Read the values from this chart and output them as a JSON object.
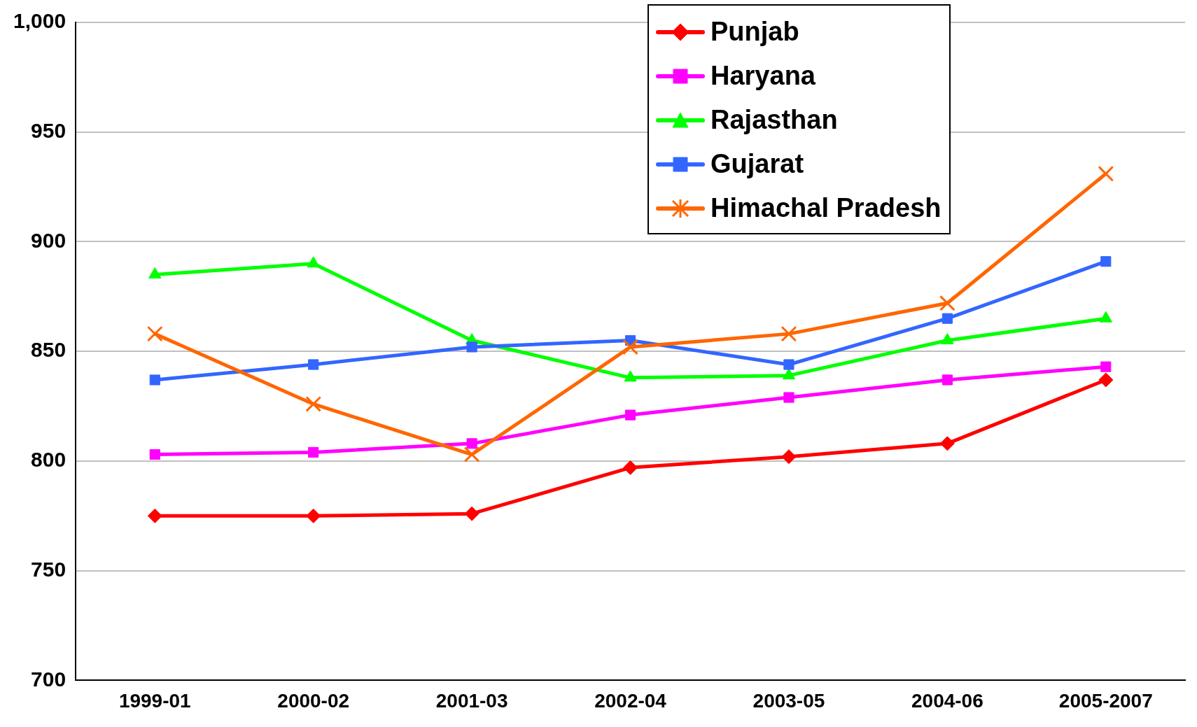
{
  "chart_data": {
    "type": "line",
    "categories": [
      "1999-01",
      "2000-02",
      "2001-03",
      "2002-04",
      "2003-05",
      "2004-06",
      "2005-2007"
    ],
    "series": [
      {
        "name": "Punjab",
        "color": "#ff0000",
        "marker": "diamond",
        "values": [
          775,
          775,
          776,
          797,
          802,
          808,
          837
        ]
      },
      {
        "name": "Haryana",
        "color": "#ff00ff",
        "marker": "square",
        "values": [
          803,
          804,
          808,
          821,
          829,
          837,
          843
        ]
      },
      {
        "name": "Rajasthan",
        "color": "#00ff00",
        "marker": "triangle",
        "values": [
          885,
          890,
          855,
          838,
          839,
          855,
          865
        ]
      },
      {
        "name": "Gujarat",
        "color": "#3366ff",
        "marker": "square",
        "values": [
          837,
          844,
          852,
          855,
          844,
          865,
          891
        ]
      },
      {
        "name": "Himachal Pradesh",
        "color": "#ff6600",
        "marker": "cross",
        "values": [
          858,
          826,
          803,
          852,
          858,
          872,
          931
        ]
      }
    ],
    "ylim": [
      700,
      1000
    ],
    "yticks": [
      700,
      750,
      800,
      850,
      900,
      950,
      {
        "value": 1000,
        "label": "1,000"
      }
    ],
    "grid": "y",
    "legend": "top",
    "line_style": "solid"
  }
}
